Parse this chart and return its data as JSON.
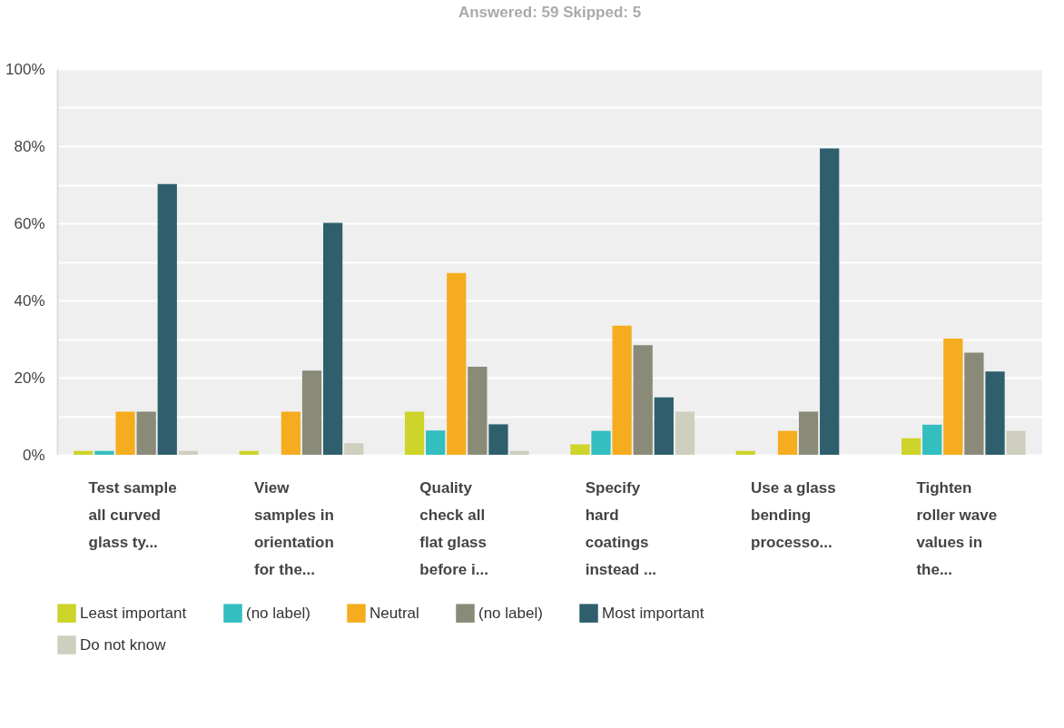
{
  "chart_data": {
    "type": "bar",
    "title": "Answered: 59    Skipped: 5",
    "categories": [
      "Test sample all curved glass ty...",
      "View samples in orientation for the...",
      "Quality check all flat glass before i...",
      "Specify hard coatings instead ...",
      "Use a glass bending processo...",
      "Tighten roller wave values in the..."
    ],
    "series": [
      {
        "name": "Least important",
        "color": "#cdd42a",
        "values": [
          1,
          1,
          11.2,
          2.7,
          1,
          4.3
        ]
      },
      {
        "name": "(no label)",
        "color": "#33bec0",
        "values": [
          1,
          0,
          6.3,
          6.2,
          0,
          7.8
        ]
      },
      {
        "name": "Neutral",
        "color": "#f5ad1f",
        "values": [
          11.2,
          11.2,
          47.1,
          33.5,
          6.2,
          30.1
        ]
      },
      {
        "name": "(no label)",
        "color": "#8a8a78",
        "values": [
          11.2,
          21.8,
          22.8,
          28.4,
          11.2,
          26.5
        ]
      },
      {
        "name": "Most important",
        "color": "#2f5f6d",
        "values": [
          70.2,
          60.1,
          7.9,
          14.9,
          79.4,
          21.6
        ]
      },
      {
        "name": "Do not know",
        "color": "#cfcfbf",
        "values": [
          1,
          3,
          1,
          11.2,
          0,
          6.2
        ]
      }
    ],
    "ylim": [
      0,
      100
    ],
    "yticks": [
      {
        "value": 0,
        "label": "0%"
      },
      {
        "value": 10,
        "label": null
      },
      {
        "value": 20,
        "label": "20%"
      },
      {
        "value": 30,
        "label": null
      },
      {
        "value": 40,
        "label": "40%"
      },
      {
        "value": 50,
        "label": null
      },
      {
        "value": 60,
        "label": "60%"
      },
      {
        "value": 70,
        "label": null
      },
      {
        "value": 80,
        "label": "80%"
      },
      {
        "value": 90,
        "label": null
      },
      {
        "value": 100,
        "label": "100%"
      }
    ],
    "grid": "y",
    "legend": "bottom"
  }
}
